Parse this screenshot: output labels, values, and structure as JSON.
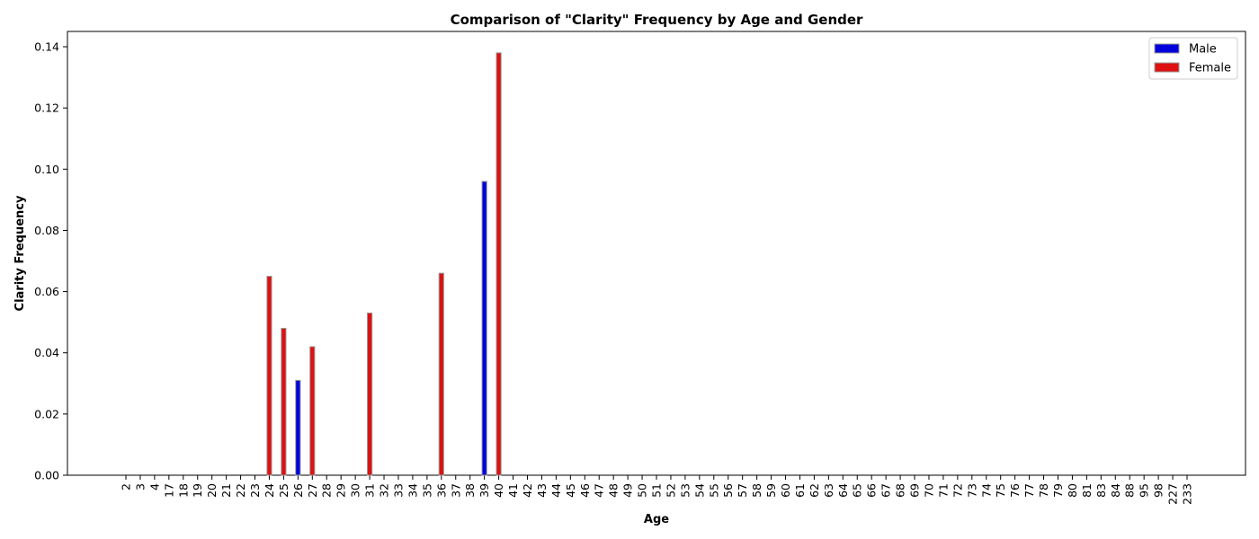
{
  "chart_data": {
    "type": "bar",
    "title": "Comparison of \"Clarity\" Frequency by Age and Gender",
    "xlabel": "Age",
    "ylabel": "Clarity Frequency",
    "ylim": [
      0,
      0.145
    ],
    "yticks": [
      0.0,
      0.02,
      0.04,
      0.06,
      0.08,
      0.1,
      0.12,
      0.14
    ],
    "legend_position": "top-right",
    "grid": false,
    "categories": [
      "2",
      "3",
      "4",
      "17",
      "18",
      "19",
      "20",
      "21",
      "22",
      "23",
      "24",
      "25",
      "26",
      "27",
      "28",
      "29",
      "30",
      "31",
      "32",
      "33",
      "34",
      "35",
      "36",
      "37",
      "38",
      "39",
      "40",
      "41",
      "42",
      "43",
      "44",
      "45",
      "46",
      "47",
      "48",
      "49",
      "50",
      "51",
      "52",
      "53",
      "54",
      "55",
      "56",
      "57",
      "58",
      "59",
      "60",
      "61",
      "62",
      "63",
      "64",
      "65",
      "66",
      "67",
      "68",
      "69",
      "70",
      "71",
      "72",
      "73",
      "74",
      "75",
      "76",
      "77",
      "78",
      "79",
      "80",
      "81",
      "83",
      "84",
      "88",
      "95",
      "98",
      "227",
      "233"
    ],
    "series": [
      {
        "name": "Male",
        "color": "#0000dd",
        "values": {
          "26": 0.031,
          "39": 0.096
        }
      },
      {
        "name": "Female",
        "color": "#dd1111",
        "values": {
          "24": 0.065,
          "25": 0.048,
          "27": 0.042,
          "31": 0.053,
          "36": 0.066,
          "40": 0.138
        }
      }
    ]
  }
}
